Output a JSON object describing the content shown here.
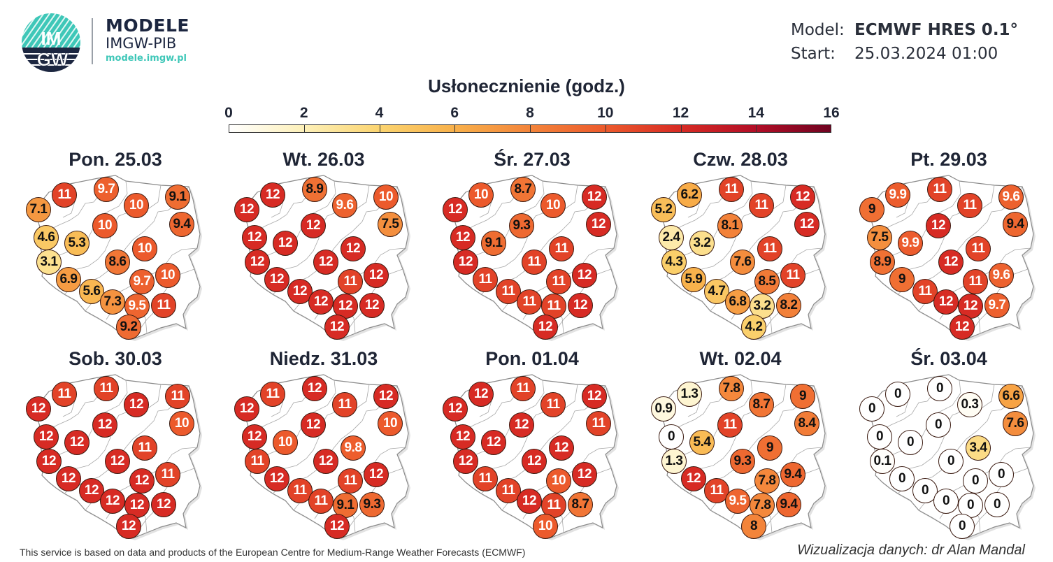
{
  "header": {
    "logo_text_top": "IM",
    "logo_text_bottom": "GW",
    "brand_title": "MODELE",
    "brand_subtitle": "IMGW-PIB",
    "brand_url": "modele.imgw.pl",
    "model_label": "Model:",
    "model_value": "ECMWF HRES 0.1°",
    "start_label": "Start:",
    "start_value": "25.03.2024 01:00"
  },
  "colorbar": {
    "title": "Usłonecznienie (godz.)",
    "ticks": [
      "0",
      "2",
      "4",
      "6",
      "8",
      "10",
      "12",
      "14",
      "16"
    ],
    "min": 0,
    "max": 16,
    "colors": [
      "#ffffff",
      "#fdf0b8",
      "#fbd470",
      "#f8b04a",
      "#f3843a",
      "#ec5a2c",
      "#d72b24",
      "#b20e26",
      "#6f0321"
    ]
  },
  "chart_data": {
    "type": "map",
    "title": "Usłonecznienie (godz.)",
    "unit": "hours",
    "value_range": [
      0,
      16
    ],
    "station_count": 20,
    "days": [
      {
        "label": "Pon. 25.03",
        "values": [
          11,
          9.7,
          9.1,
          7.1,
          10,
          9.4,
          10,
          4.6,
          5.3,
          10,
          8.6,
          3.1,
          9.7,
          10,
          6.9,
          5.6,
          7.3,
          9.5,
          11,
          9.2
        ]
      },
      {
        "label": "Wt. 26.03",
        "values": [
          12,
          8.9,
          10,
          12,
          9.6,
          7.5,
          12,
          12,
          12,
          12,
          12,
          12,
          11,
          12,
          12,
          12,
          12,
          12,
          12,
          12
        ]
      },
      {
        "label": "Śr. 27.03",
        "values": [
          10,
          8.7,
          12,
          12,
          10,
          12,
          9.3,
          12,
          9.1,
          11,
          11,
          12,
          11,
          12,
          11,
          11,
          11,
          11,
          12,
          12
        ]
      },
      {
        "label": "Czw. 28.03",
        "values": [
          6.2,
          11,
          12,
          5.2,
          11,
          12,
          8.1,
          2.4,
          3.2,
          11,
          7.6,
          4.3,
          8.5,
          11,
          5.9,
          4.7,
          6.8,
          3.2,
          8.2,
          4.2
        ]
      },
      {
        "label": "Pt. 29.03",
        "values": [
          9.9,
          11,
          9.6,
          9,
          11,
          9.4,
          12,
          7.5,
          9.9,
          11,
          12,
          8.9,
          11,
          9.6,
          9,
          11,
          12,
          12,
          9.7,
          12
        ]
      },
      {
        "label": "Sob. 30.03",
        "values": [
          11,
          11,
          11,
          12,
          12,
          10,
          12,
          12,
          12,
          11,
          12,
          12,
          12,
          11,
          12,
          12,
          12,
          12,
          12,
          12
        ]
      },
      {
        "label": "Niedz. 31.03",
        "values": [
          11,
          12,
          12,
          12,
          11,
          10,
          12,
          12,
          10,
          9.8,
          12,
          11,
          11,
          12,
          12,
          11,
          11,
          9.1,
          9.3,
          12
        ]
      },
      {
        "label": "Pon. 01.04",
        "values": [
          12,
          11,
          12,
          12,
          11,
          11,
          12,
          12,
          12,
          12,
          12,
          12,
          10,
          12,
          11,
          11,
          12,
          11,
          8.7,
          10
        ]
      },
      {
        "label": "Wt. 02.04",
        "values": [
          1.3,
          7.8,
          9,
          0.9,
          8.7,
          8.4,
          11,
          0,
          5.4,
          9,
          9.3,
          1.3,
          7.8,
          9.4,
          12,
          11,
          9.5,
          7.8,
          9.4,
          8
        ]
      },
      {
        "label": "Śr. 03.04",
        "values": [
          0,
          0,
          6.6,
          0,
          0.3,
          7.6,
          0,
          0,
          0,
          3.4,
          0,
          0.1,
          0,
          0,
          0,
          0,
          0,
          0,
          0,
          0
        ]
      }
    ]
  },
  "footer": {
    "source": "This service is based on data and products of the European Centre for Medium-Range Weather Forecasts (ECMWF)",
    "credit": "Wizualizacja danych: dr Alan Mandal"
  }
}
